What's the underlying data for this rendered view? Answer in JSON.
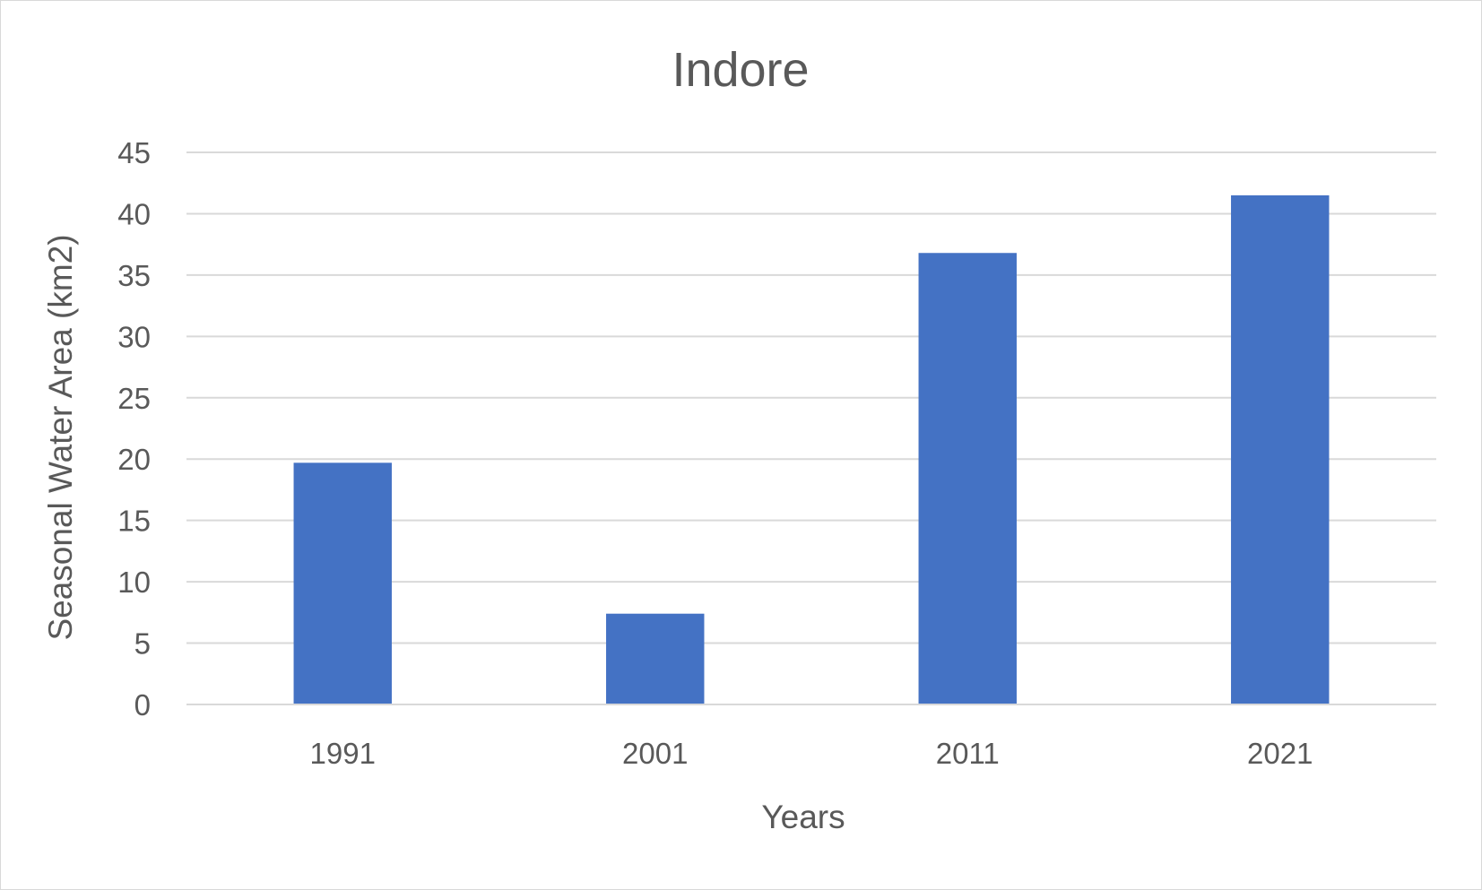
{
  "chart_data": {
    "type": "bar",
    "title": "Indore",
    "xlabel": "Years",
    "ylabel": "Seasonal Water Area  (km2)",
    "categories": [
      "1991",
      "2001",
      "2011",
      "2021"
    ],
    "values": [
      19.7,
      7.4,
      36.8,
      41.5
    ],
    "ylim": [
      0,
      45
    ],
    "yticks": [
      0,
      5,
      10,
      15,
      20,
      25,
      30,
      35,
      40,
      45
    ],
    "grid": true,
    "legend": "none",
    "bar_color": "#4472C4",
    "grid_color": "#d9d9d9",
    "text_color": "#595959"
  }
}
